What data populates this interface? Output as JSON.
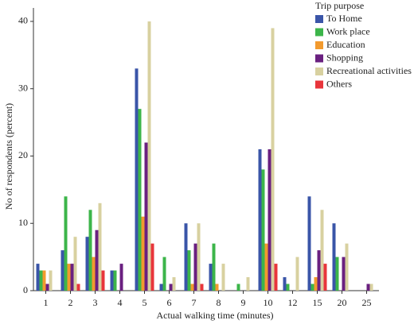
{
  "chart_data": {
    "type": "bar",
    "x_label": "Actual walking time (minutes)",
    "y_label": "No of respondents (percent)",
    "legend_title": "Trip purpose",
    "legend_position": "top-right",
    "categories": [
      "1",
      "2",
      "3",
      "4",
      "5",
      "6",
      "7",
      "8",
      "9",
      "10",
      "12",
      "15",
      "20",
      "25"
    ],
    "series": [
      {
        "name": "To Home",
        "color": "#3a55a8",
        "values": [
          4,
          6,
          8,
          3,
          33,
          1,
          10,
          4,
          0,
          21,
          2,
          14,
          10,
          0
        ]
      },
      {
        "name": "Work place",
        "color": "#3cb54a",
        "values": [
          3,
          14,
          12,
          3,
          27,
          5,
          6,
          7,
          1,
          18,
          1,
          1,
          5,
          0
        ]
      },
      {
        "name": "Education",
        "color": "#f29a2e",
        "values": [
          3,
          4,
          5,
          0,
          11,
          0,
          1,
          1,
          0,
          7,
          0,
          2,
          0,
          0
        ]
      },
      {
        "name": "Shopping",
        "color": "#6a2080",
        "values": [
          1,
          4,
          9,
          4,
          22,
          1,
          7,
          0,
          0,
          21,
          0,
          6,
          5,
          1
        ]
      },
      {
        "name": "Recreational activities",
        "color": "#d8d1a0",
        "values": [
          3,
          8,
          13,
          0,
          40,
          2,
          10,
          4,
          2,
          39,
          5,
          12,
          7,
          1
        ]
      },
      {
        "name": "Others",
        "color": "#e8353b",
        "values": [
          0,
          1,
          3,
          0,
          7,
          0,
          1,
          0,
          0,
          4,
          0,
          4,
          0,
          0
        ]
      }
    ],
    "ylim": [
      0,
      42
    ],
    "yticks": [
      0,
      10,
      20,
      30,
      40
    ]
  }
}
